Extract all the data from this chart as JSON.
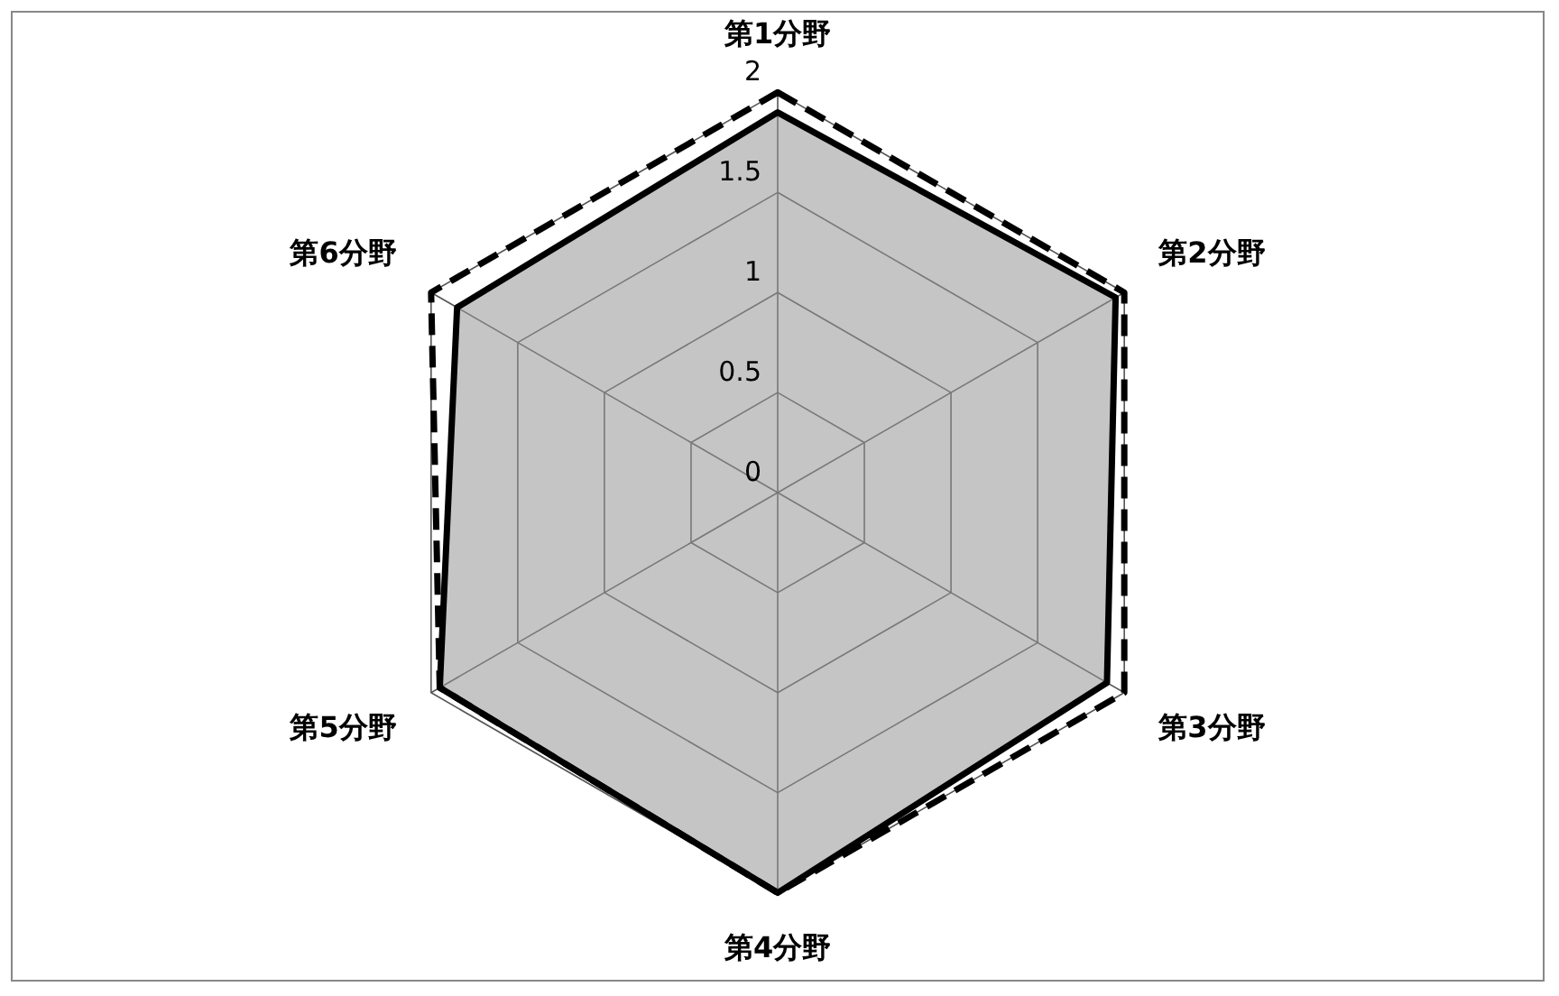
{
  "chart_data": {
    "type": "radar",
    "categories": [
      "第1分野",
      "第2分野",
      "第3分野",
      "第4分野",
      "第5分野",
      "第6分野"
    ],
    "series": [
      {
        "color": "#000000",
        "line_style": "solid",
        "values": [
          1.9,
          1.95,
          1.9,
          2,
          1.95,
          1.85
        ]
      },
      {
        "color": "#000000",
        "line_style": "dashed",
        "values": [
          2,
          2,
          2,
          2,
          1.95,
          2
        ]
      }
    ],
    "ylim": [
      0,
      2
    ],
    "yticks": [
      0,
      0.5,
      1,
      1.5,
      2
    ],
    "grid": true,
    "legend": false,
    "marker": "none"
  }
}
